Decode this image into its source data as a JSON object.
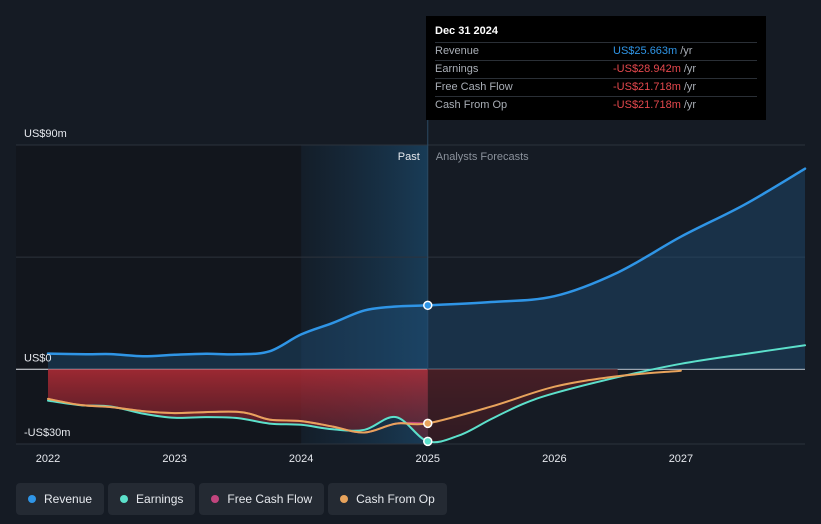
{
  "chart_data": {
    "type": "line",
    "title": "",
    "y_axis": {
      "unit": "US$ millions",
      "ylim": [
        -30,
        90
      ],
      "tick_labels": [
        "US$90m",
        "US$0",
        "-US$30m"
      ]
    },
    "x_axis": {
      "xlim": [
        2022.0,
        2027.98
      ],
      "tick_labels": [
        "2022",
        "2023",
        "2024",
        "2025",
        "2026",
        "2027"
      ]
    },
    "zones": {
      "past_label": "Past",
      "forecast_label": "Analysts Forecasts",
      "highlight_start": 2024.0,
      "divider": 2025.0
    },
    "series": [
      {
        "name": "Revenue",
        "color": "#2f95e6",
        "fill": true,
        "points": [
          [
            2022.0,
            6.3
          ],
          [
            2022.3,
            6.0
          ],
          [
            2022.5,
            6.1
          ],
          [
            2022.75,
            5.2
          ],
          [
            2023.0,
            5.8
          ],
          [
            2023.25,
            6.2
          ],
          [
            2023.5,
            6.0
          ],
          [
            2023.75,
            7.2
          ],
          [
            2024.0,
            14.0
          ],
          [
            2024.25,
            18.6
          ],
          [
            2024.5,
            23.6
          ],
          [
            2024.75,
            25.2
          ],
          [
            2025.0,
            25.66
          ],
          [
            2025.5,
            27.0
          ],
          [
            2026.0,
            29.3
          ],
          [
            2026.5,
            38.8
          ],
          [
            2027.0,
            53.2
          ],
          [
            2027.5,
            66.0
          ],
          [
            2027.98,
            80.5
          ]
        ]
      },
      {
        "name": "Earnings",
        "color": "#5ce0cb",
        "fill": false,
        "points": [
          [
            2022.0,
            -12.6
          ],
          [
            2022.25,
            -14.4
          ],
          [
            2022.5,
            -15.0
          ],
          [
            2022.75,
            -17.8
          ],
          [
            2023.0,
            -19.5
          ],
          [
            2023.25,
            -19.2
          ],
          [
            2023.5,
            -19.6
          ],
          [
            2023.75,
            -21.8
          ],
          [
            2024.0,
            -22.3
          ],
          [
            2024.25,
            -24.1
          ],
          [
            2024.5,
            -24.3
          ],
          [
            2024.75,
            -19.2
          ],
          [
            2025.0,
            -28.94
          ],
          [
            2025.25,
            -26.5
          ],
          [
            2025.5,
            -20.0
          ],
          [
            2025.75,
            -14.0
          ],
          [
            2026.0,
            -9.6
          ],
          [
            2026.5,
            -3.2
          ],
          [
            2027.0,
            2.2
          ],
          [
            2027.5,
            6.1
          ],
          [
            2027.98,
            9.6
          ]
        ]
      },
      {
        "name": "Free Cash Flow",
        "color": "#c2457e",
        "fill": false,
        "points": [
          [
            2022.0,
            -11.9
          ],
          [
            2022.25,
            -14.3
          ],
          [
            2022.5,
            -15.2
          ],
          [
            2022.75,
            -16.8
          ],
          [
            2023.0,
            -17.6
          ],
          [
            2023.5,
            -17.1
          ],
          [
            2023.75,
            -20.2
          ],
          [
            2024.0,
            -20.8
          ],
          [
            2024.25,
            -23.0
          ],
          [
            2024.5,
            -25.4
          ],
          [
            2024.75,
            -21.8
          ],
          [
            2025.0,
            -21.72
          ]
        ]
      },
      {
        "name": "Cash From Op",
        "color": "#e8a35c",
        "fill": false,
        "points": [
          [
            2022.0,
            -11.9
          ],
          [
            2022.25,
            -14.3
          ],
          [
            2022.5,
            -15.2
          ],
          [
            2022.75,
            -16.8
          ],
          [
            2023.0,
            -17.6
          ],
          [
            2023.5,
            -17.1
          ],
          [
            2023.75,
            -20.2
          ],
          [
            2024.0,
            -20.8
          ],
          [
            2024.25,
            -23.0
          ],
          [
            2024.5,
            -25.4
          ],
          [
            2024.75,
            -21.8
          ],
          [
            2025.0,
            -21.72
          ],
          [
            2025.5,
            -15.0
          ],
          [
            2026.0,
            -7.0
          ],
          [
            2026.5,
            -2.8
          ],
          [
            2027.0,
            -0.6
          ]
        ]
      }
    ],
    "tooltip": {
      "date": "Dec 31 2024",
      "rows": [
        {
          "label": "Revenue",
          "value": "US$25.663m",
          "unit": "/yr",
          "color": "#2f95e6"
        },
        {
          "label": "Earnings",
          "value": "-US$28.942m",
          "unit": "/yr",
          "color": "#e5484d"
        },
        {
          "label": "Free Cash Flow",
          "value": "-US$21.718m",
          "unit": "/yr",
          "color": "#e5484d"
        },
        {
          "label": "Cash From Op",
          "value": "-US$21.718m",
          "unit": "/yr",
          "color": "#e5484d"
        }
      ]
    }
  },
  "legend": [
    {
      "label": "Revenue",
      "color": "#2f95e6"
    },
    {
      "label": "Earnings",
      "color": "#5ce0cb"
    },
    {
      "label": "Free Cash Flow",
      "color": "#c2457e"
    },
    {
      "label": "Cash From Op",
      "color": "#e8a35c"
    }
  ]
}
